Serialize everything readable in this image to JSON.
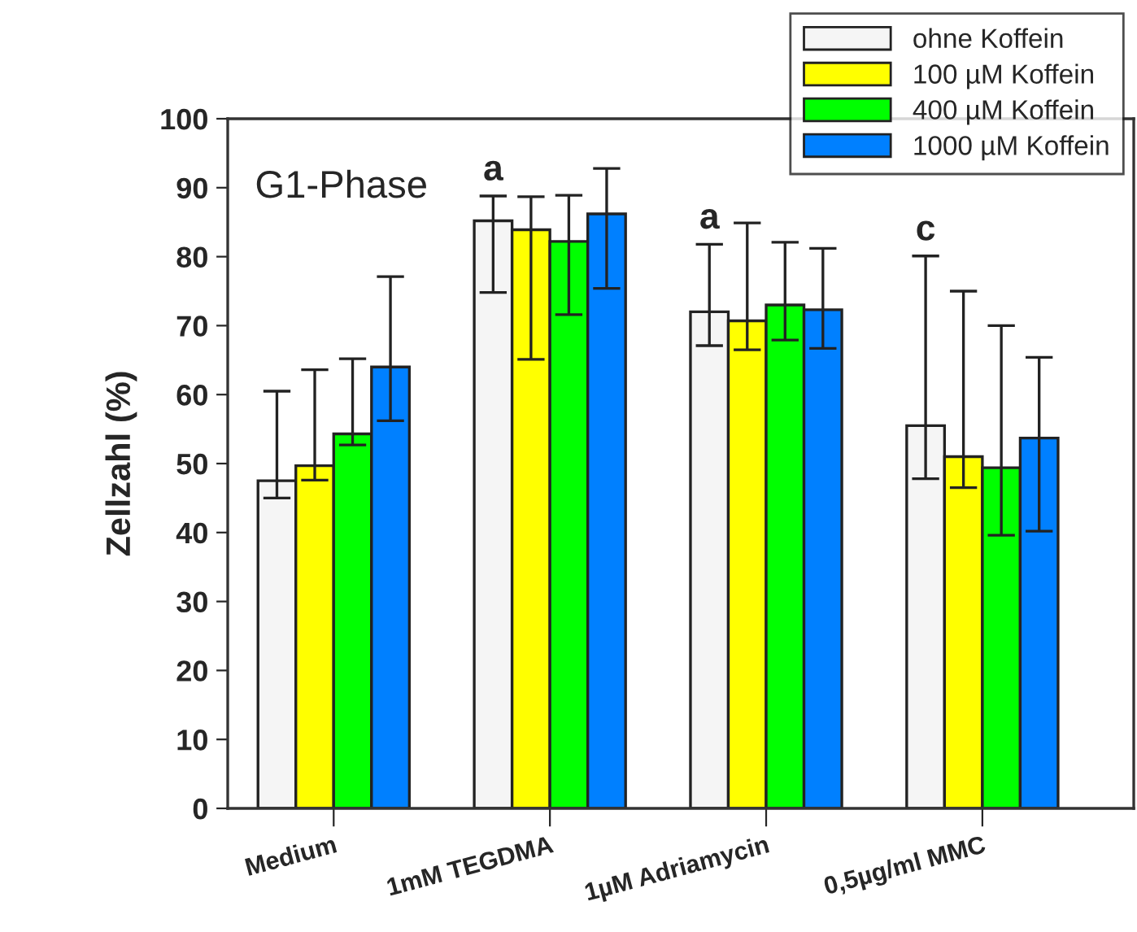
{
  "chart_data": {
    "type": "bar",
    "ylabel": "Zellzahl (%)",
    "categories": [
      "Medium",
      "1mM TEGDMA",
      "1µM Adriamycin",
      "0,5µg/ml MMC"
    ],
    "series": [
      {
        "name": "ohne Koffein",
        "color": "#f5f5f5",
        "values": [
          47.5,
          85.2,
          72.0,
          55.5
        ],
        "errors": [
          [
            45.0,
            60.5
          ],
          [
            74.8,
            88.8
          ],
          [
            67.1,
            81.8
          ],
          [
            47.8,
            80.1
          ]
        ]
      },
      {
        "name": "100 µM Koffein",
        "color": "#ffff00",
        "values": [
          49.7,
          83.9,
          70.7,
          51.0
        ],
        "errors": [
          [
            47.6,
            63.6
          ],
          [
            65.1,
            88.7
          ],
          [
            66.5,
            84.9
          ],
          [
            46.5,
            75.0
          ]
        ]
      },
      {
        "name": "400 µM Koffein",
        "color": "#00ff00",
        "values": [
          54.3,
          82.2,
          73.0,
          49.4
        ],
        "errors": [
          [
            52.7,
            65.2
          ],
          [
            71.6,
            88.9
          ],
          [
            67.9,
            82.1
          ],
          [
            39.6,
            70.0
          ]
        ]
      },
      {
        "name": "1000 µM Koffein",
        "color": "#0080ff",
        "values": [
          64.0,
          86.2,
          72.3,
          53.7
        ],
        "errors": [
          [
            56.2,
            77.1
          ],
          [
            75.4,
            92.8
          ],
          [
            66.7,
            81.2
          ],
          [
            40.2,
            65.4
          ]
        ]
      }
    ],
    "ylim": [
      0,
      100
    ],
    "yticks": [
      0,
      10,
      20,
      30,
      40,
      50,
      60,
      70,
      80,
      90,
      100
    ],
    "annotations": [
      "G1-Phase",
      "a",
      "a",
      "c"
    ],
    "legend": "top right",
    "grid": false
  }
}
